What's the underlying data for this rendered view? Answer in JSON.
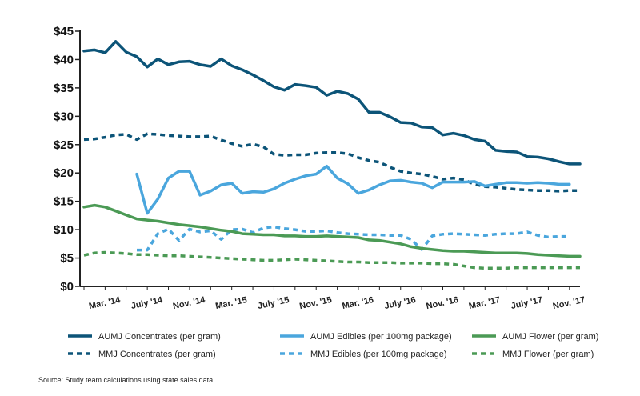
{
  "chart_data": {
    "type": "line",
    "title": "",
    "xlabel": "",
    "ylabel": "",
    "ylim": [
      0,
      45
    ],
    "y_ticks": [
      0,
      5,
      10,
      15,
      20,
      25,
      30,
      35,
      40,
      45
    ],
    "y_tick_labels": [
      "$0",
      "$5",
      "$10",
      "$15",
      "$20",
      "$25",
      "$30",
      "$35",
      "$40",
      "$45"
    ],
    "x_period_range": [
      "2014-01",
      "2017-12"
    ],
    "x_tick_labels": [
      "Mar. '14",
      "July '14",
      "Nov. '14",
      "Mar. '15",
      "July '15",
      "Nov. '15",
      "Mar. '16",
      "July '16",
      "Nov. '16",
      "Mar. '17",
      "July '17",
      "Nov. '17"
    ],
    "grid": false,
    "legend_position": "bottom",
    "source": "Source: Study team calculations using state sales data.",
    "series": [
      {
        "name": "AUMJ Concentrates (per gram)",
        "color": "#0c5478",
        "style": "solid",
        "start": "2014-01",
        "values": [
          41.5,
          41.7,
          41.2,
          43.2,
          41.3,
          40.5,
          38.7,
          40.1,
          39.1,
          39.6,
          39.7,
          39.1,
          38.8,
          40.1,
          38.9,
          38.2,
          37.3,
          36.3,
          35.2,
          34.6,
          35.6,
          35.4,
          35.1,
          33.7,
          34.4,
          34.0,
          33.0,
          30.7,
          30.7,
          29.9,
          28.9,
          28.8,
          28.1,
          28.0,
          26.7,
          27.0,
          26.6,
          25.9,
          25.6,
          24.0,
          23.8,
          23.7,
          22.9,
          22.8,
          22.5,
          22.0,
          21.6,
          21.6
        ]
      },
      {
        "name": "MMJ Concentrates (per gram)",
        "color": "#0c5478",
        "style": "dashed",
        "start": "2014-01",
        "values": [
          25.9,
          26.0,
          26.3,
          26.7,
          26.8,
          25.9,
          26.9,
          26.8,
          26.6,
          26.5,
          26.4,
          26.4,
          26.5,
          25.8,
          25.2,
          24.7,
          25.1,
          24.6,
          23.3,
          23.1,
          23.2,
          23.2,
          23.5,
          23.6,
          23.6,
          23.4,
          22.7,
          22.2,
          21.9,
          21.0,
          20.3,
          20.0,
          19.8,
          19.4,
          18.9,
          19.1,
          18.8,
          18.0,
          17.6,
          17.5,
          17.3,
          17.1,
          17.0,
          16.9,
          16.9,
          16.8,
          16.9,
          16.9
        ]
      },
      {
        "name": "AUMJ Edibles (per 100mg package)",
        "color": "#4aa6dd",
        "style": "solid",
        "start": "2014-06",
        "values": [
          19.8,
          12.9,
          15.4,
          19.1,
          20.3,
          20.3,
          16.1,
          16.8,
          17.9,
          18.2,
          16.4,
          16.7,
          16.6,
          17.2,
          18.2,
          18.9,
          19.5,
          19.8,
          21.2,
          19.1,
          18.1,
          16.4,
          17.0,
          17.9,
          18.6,
          18.7,
          18.4,
          18.2,
          17.4,
          18.4,
          18.4,
          18.4,
          18.5,
          17.7,
          18.0,
          18.3,
          18.3,
          18.2,
          18.3,
          18.2,
          18.0,
          18.0
        ]
      },
      {
        "name": "MMJ Edibles (per 100mg package)",
        "color": "#4aa6dd",
        "style": "dashed",
        "start": "2014-06",
        "values": [
          6.4,
          6.4,
          9.3,
          10.1,
          8.1,
          10.1,
          9.6,
          9.8,
          8.3,
          10.0,
          10.1,
          9.5,
          10.3,
          10.5,
          10.2,
          10.0,
          9.7,
          9.7,
          9.8,
          9.5,
          9.3,
          9.2,
          9.1,
          9.1,
          9.0,
          9.0,
          8.3,
          6.5,
          8.9,
          9.2,
          9.3,
          9.2,
          9.1,
          9.0,
          9.2,
          9.3,
          9.3,
          9.6,
          9.0,
          8.7,
          8.8,
          8.8
        ]
      },
      {
        "name": "AUMJ Flower (per gram)",
        "color": "#4b9a55",
        "style": "solid",
        "start": "2014-01",
        "values": [
          14.0,
          14.3,
          14.0,
          13.3,
          12.6,
          11.9,
          11.7,
          11.5,
          11.2,
          10.9,
          10.7,
          10.5,
          10.2,
          9.9,
          9.7,
          9.3,
          9.2,
          9.1,
          9.1,
          8.9,
          8.9,
          8.8,
          8.8,
          8.9,
          8.8,
          8.7,
          8.6,
          8.2,
          8.1,
          7.8,
          7.5,
          7.0,
          6.7,
          6.5,
          6.3,
          6.2,
          6.2,
          6.1,
          6.0,
          5.9,
          5.9,
          5.9,
          5.8,
          5.6,
          5.5,
          5.4,
          5.3,
          5.3
        ]
      },
      {
        "name": "MMJ Flower (per gram)",
        "color": "#4b9a55",
        "style": "dashed",
        "start": "2014-01",
        "values": [
          5.5,
          5.9,
          6.0,
          5.9,
          5.8,
          5.6,
          5.6,
          5.5,
          5.4,
          5.4,
          5.3,
          5.2,
          5.1,
          5.0,
          4.9,
          4.8,
          4.7,
          4.6,
          4.6,
          4.7,
          4.8,
          4.7,
          4.6,
          4.5,
          4.4,
          4.3,
          4.3,
          4.2,
          4.2,
          4.2,
          4.1,
          4.1,
          4.1,
          4.0,
          4.0,
          3.9,
          3.6,
          3.3,
          3.2,
          3.2,
          3.2,
          3.3,
          3.3,
          3.3,
          3.3,
          3.3,
          3.3,
          3.3
        ]
      }
    ]
  }
}
